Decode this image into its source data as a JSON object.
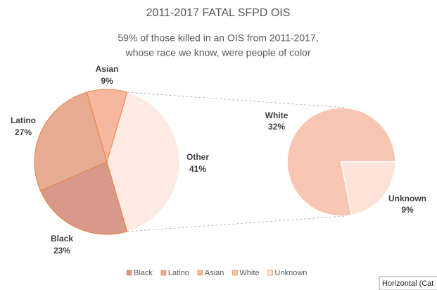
{
  "chart_data": {
    "type": "pie-of-pie",
    "title": "2011-2017 FATAL SFPD OIS",
    "subtitle": [
      "59% of those  killed in an OIS from 2011-2017,",
      "whose  race we know, were people of color"
    ],
    "main": {
      "categories": [
        "Black",
        "Latino",
        "Asian",
        "Other"
      ],
      "values": [
        23,
        27,
        9,
        41
      ],
      "value_labels": [
        "23%",
        "27%",
        "9%",
        "41%"
      ],
      "colors": [
        "#d9998a",
        "#e6ab93",
        "#f6b79e",
        "#fdebe3"
      ]
    },
    "secondary": {
      "categories": [
        "White",
        "Unknown"
      ],
      "values": [
        32,
        9
      ],
      "value_labels": [
        "32%",
        "9%"
      ],
      "colors": [
        "#f9c6b3",
        "#fde2d7"
      ]
    },
    "legend_position": "bottom",
    "tooltip": "Horizontal (Cat"
  }
}
